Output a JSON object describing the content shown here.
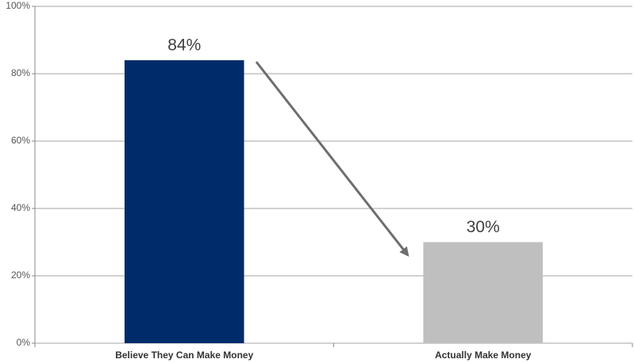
{
  "chart_data": {
    "type": "bar",
    "categories": [
      "Believe They Can Make Money",
      "Actually Make Money"
    ],
    "values": [
      84,
      30
    ],
    "value_labels": [
      "84%",
      "30%"
    ],
    "colors": [
      "#002b6b",
      "#bfbfbf"
    ],
    "ylim": [
      0,
      100
    ],
    "yticks": [
      {
        "value": 0,
        "label": "0%"
      },
      {
        "value": 20,
        "label": "20%"
      },
      {
        "value": 40,
        "label": "40%"
      },
      {
        "value": 60,
        "label": "60%"
      },
      {
        "value": 80,
        "label": "80%"
      },
      {
        "value": 100,
        "label": "100%"
      }
    ],
    "grid": true
  }
}
